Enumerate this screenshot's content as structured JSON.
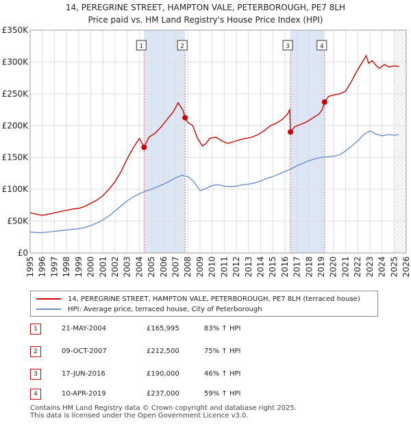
{
  "title_line1": "14, PEREGRINE STREET, HAMPTON VALE, PETERBOROUGH, PE7 8LH",
  "title_line2": "Price paid vs. HM Land Registry's House Price Index (HPI)",
  "legend": {
    "property_label": "14, PEREGRINE STREET, HAMPTON VALE, PETERBOROUGH, PE7 8LH (terraced house)",
    "hpi_label": "HPI: Average price, terraced house, City of Peterborough"
  },
  "colors": {
    "property": "#cc0000",
    "hpi": "#6a8fc8",
    "shade": "#dde6f5",
    "grid": "#dddddd",
    "vline": "#e06666"
  },
  "transactions": [
    {
      "num": "1",
      "date": "21-MAY-2004",
      "price": "£165,995",
      "hpi": "83% ↑ HPI"
    },
    {
      "num": "2",
      "date": "09-OCT-2007",
      "price": "£212,500",
      "hpi": "75% ↑ HPI"
    },
    {
      "num": "3",
      "date": "17-JUN-2016",
      "price": "£190,000",
      "hpi": "46% ↑ HPI"
    },
    {
      "num": "4",
      "date": "10-APR-2019",
      "price": "£237,000",
      "hpi": "59% ↑ HPI"
    }
  ],
  "footer_line1": "Contains HM Land Registry data © Crown copyright and database right 2025.",
  "footer_line2": "This data is licensed under the Open Government Licence v3.0.",
  "chart_data": {
    "type": "line",
    "title": "14, PEREGRINE STREET, HAMPTON VALE, PETERBOROUGH, PE7 8LH",
    "subtitle": "Price paid vs. HM Land Registry's House Price Index (HPI)",
    "xlim": [
      1995,
      2026
    ],
    "ylim": [
      0,
      350000
    ],
    "x_ticks": [
      1995,
      1996,
      1997,
      1998,
      1999,
      2000,
      2001,
      2002,
      2003,
      2004,
      2005,
      2006,
      2007,
      2008,
      2009,
      2010,
      2011,
      2012,
      2013,
      2014,
      2015,
      2016,
      2017,
      2018,
      2019,
      2020,
      2021,
      2022,
      2023,
      2024,
      2025,
      2026
    ],
    "y_ticks": [
      0,
      50000,
      100000,
      150000,
      200000,
      250000,
      300000,
      350000
    ],
    "y_tick_labels": [
      "£0",
      "£50K",
      "£100K",
      "£150K",
      "£200K",
      "£250K",
      "£300K",
      "£350K"
    ],
    "grid": true,
    "legend_position": "below",
    "shaded_periods": [
      [
        2004.39,
        2007.77
      ],
      [
        2016.46,
        2019.27
      ]
    ],
    "future_hatch_from": 2025.0,
    "sales": [
      {
        "label": "1",
        "x": 2004.39,
        "y": 165995
      },
      {
        "label": "2",
        "x": 2007.77,
        "y": 212500
      },
      {
        "label": "3",
        "x": 2016.46,
        "y": 190000
      },
      {
        "label": "4",
        "x": 2019.27,
        "y": 237000
      }
    ],
    "series": [
      {
        "name": "14, PEREGRINE STREET, HAMPTON VALE, PETERBOROUGH, PE7 8LH (terraced house)",
        "x": [
          1995.0,
          1995.5,
          1996,
          1996.5,
          1997,
          1997.5,
          1998,
          1998.5,
          1999,
          1999.5,
          2000,
          2000.5,
          2001,
          2001.5,
          2002,
          2002.5,
          2003,
          2003.5,
          2004,
          2004.39,
          2004.8,
          2005.3,
          2005.8,
          2006.3,
          2006.8,
          2007.2,
          2007.6,
          2007.77,
          2008.0,
          2008.4,
          2008.8,
          2009.2,
          2009.5,
          2009.8,
          2010.3,
          2010.8,
          2011.3,
          2011.8,
          2012.3,
          2012.8,
          2013.3,
          2013.8,
          2014.3,
          2014.8,
          2015.3,
          2015.8,
          2016.2,
          2016.4,
          2016.46,
          2016.8,
          2017.3,
          2017.8,
          2018.3,
          2018.8,
          2019.1,
          2019.27,
          2019.6,
          2020.0,
          2020.5,
          2021.0,
          2021.5,
          2022.0,
          2022.4,
          2022.7,
          2022.9,
          2023.2,
          2023.5,
          2023.8,
          2024.2,
          2024.6,
          2025.0,
          2025.4
        ],
        "y": [
          63000,
          61000,
          59000,
          61000,
          63000,
          65000,
          67000,
          69000,
          70000,
          73000,
          78000,
          83000,
          90000,
          100000,
          112000,
          128000,
          148000,
          165000,
          180000,
          165995,
          182000,
          188000,
          198000,
          210000,
          222000,
          236000,
          224000,
          212500,
          205000,
          200000,
          180000,
          168000,
          172000,
          180000,
          182000,
          176000,
          172000,
          175000,
          178000,
          180000,
          182000,
          186000,
          192000,
          200000,
          204000,
          210000,
          218000,
          225000,
          190000,
          198000,
          202000,
          206000,
          212000,
          218000,
          226000,
          237000,
          246000,
          248000,
          250000,
          254000,
          270000,
          288000,
          300000,
          310000,
          298000,
          302000,
          295000,
          290000,
          296000,
          292000,
          294000,
          293000
        ]
      },
      {
        "name": "HPI: Average price, terraced house, City of Peterborough",
        "x": [
          1995,
          1995.5,
          1996,
          1996.5,
          1997,
          1997.5,
          1998,
          1998.5,
          1999,
          1999.5,
          2000,
          2000.5,
          2001,
          2001.5,
          2002,
          2002.5,
          2003,
          2003.5,
          2004,
          2004.5,
          2005,
          2005.5,
          2006,
          2006.5,
          2007,
          2007.5,
          2008,
          2008.5,
          2009,
          2009.5,
          2010,
          2010.5,
          2011,
          2011.5,
          2012,
          2012.5,
          2013,
          2013.5,
          2014,
          2014.5,
          2015,
          2015.5,
          2016,
          2016.5,
          2017,
          2017.5,
          2018,
          2018.5,
          2019,
          2019.5,
          2020,
          2020.5,
          2021,
          2021.5,
          2022,
          2022.5,
          2023,
          2023.5,
          2024,
          2024.5,
          2025,
          2025.4
        ],
        "y": [
          33000,
          32000,
          32000,
          33000,
          34000,
          35000,
          36000,
          37000,
          38000,
          40000,
          43000,
          47000,
          52000,
          58000,
          66000,
          74000,
          82000,
          88000,
          93000,
          97000,
          100000,
          104000,
          108000,
          113000,
          118000,
          122000,
          120000,
          112000,
          98000,
          101000,
          106000,
          107000,
          105000,
          104000,
          105000,
          107000,
          108000,
          110000,
          113000,
          117000,
          120000,
          124000,
          128000,
          132000,
          137000,
          141000,
          145000,
          148000,
          150000,
          151000,
          152000,
          154000,
          160000,
          168000,
          176000,
          186000,
          192000,
          187000,
          184000,
          186000,
          185000,
          186000
        ]
      }
    ]
  }
}
